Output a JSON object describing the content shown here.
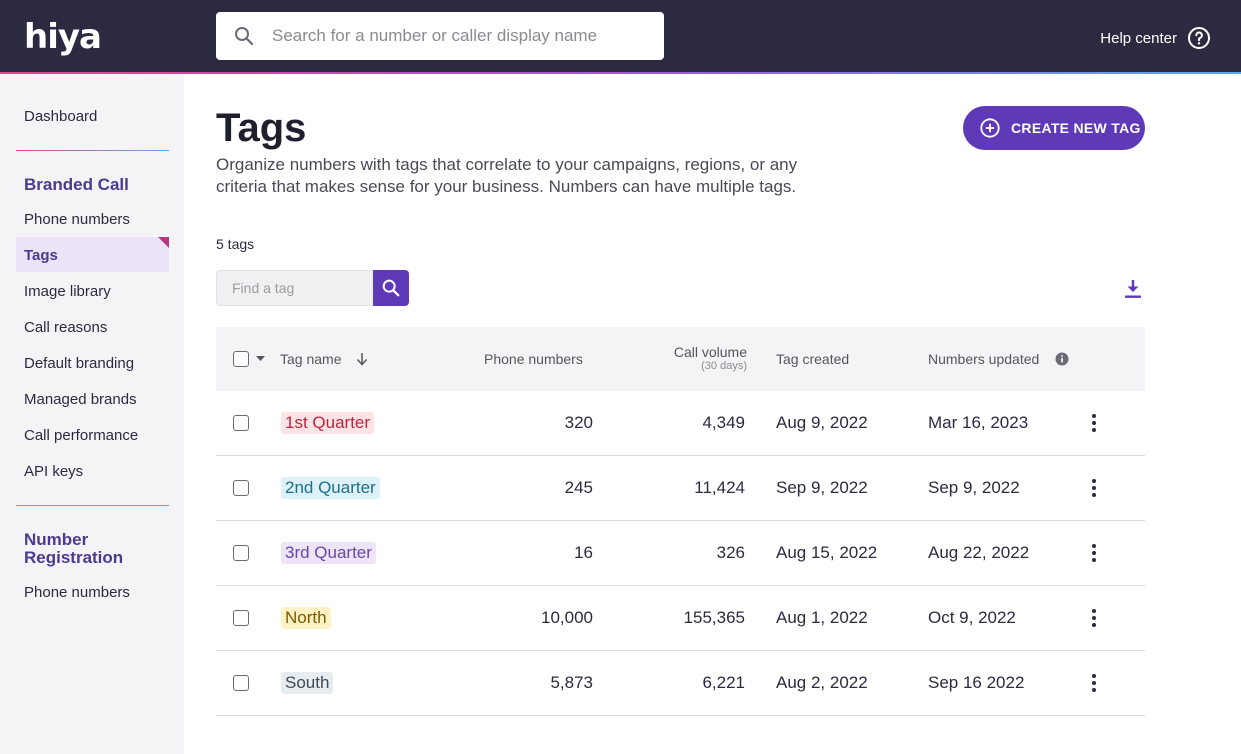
{
  "header": {
    "logo_text": "hiya",
    "search_placeholder": "Search for a number or caller display name",
    "help_label": "Help center"
  },
  "sidebar": {
    "dashboard": "Dashboard",
    "section1_title": "Branded Call",
    "section1_items": [
      "Phone numbers",
      "Tags",
      "Image library",
      "Call reasons",
      "Default branding",
      "Managed brands",
      "Call performance",
      "API keys"
    ],
    "active_item": "Tags",
    "section2_title_line1": "Number",
    "section2_title_line2": "Registration",
    "section2_items": [
      "Phone numbers"
    ]
  },
  "page": {
    "title": "Tags",
    "description_line1": "Organize numbers with tags that correlate to your campaigns, regions, or any",
    "description_line2": "criteria that makes sense for your business. Numbers can have multiple tags.",
    "create_button": "CREATE NEW TAG",
    "tag_count": "5 tags",
    "find_placeholder": "Find a tag"
  },
  "table": {
    "columns": {
      "tag_name": "Tag name",
      "phone_numbers": "Phone numbers",
      "call_volume": "Call volume",
      "call_volume_sub": "(30 days)",
      "tag_created": "Tag created",
      "numbers_updated": "Numbers updated"
    },
    "rows": [
      {
        "tag": "1st Quarter",
        "phone_numbers": "320",
        "call_volume": "4,349",
        "created": "Aug 9, 2022",
        "updated": "Mar 16, 2023"
      },
      {
        "tag": "2nd Quarter",
        "phone_numbers": "245",
        "call_volume": "11,424",
        "created": "Sep 9, 2022",
        "updated": "Sep 9, 2022"
      },
      {
        "tag": "3rd Quarter",
        "phone_numbers": "16",
        "call_volume": "326",
        "created": "Aug 15, 2022",
        "updated": "Aug 22, 2022"
      },
      {
        "tag": "North",
        "phone_numbers": "10,000",
        "call_volume": "155,365",
        "created": "Aug 1, 2022",
        "updated": "Oct 9, 2022"
      },
      {
        "tag": "South",
        "phone_numbers": "5,873",
        "call_volume": "6,221",
        "created": "Aug 2, 2022",
        "updated": "Sep 16 2022"
      }
    ]
  },
  "colors": {
    "brand_purple": "#5f3ab8",
    "header_bg": "#2b2a40",
    "tag_q1_bg": "#fde3e6",
    "tag_q1_fg": "#b8283f",
    "tag_q2_bg": "#dcf1f8",
    "tag_q2_fg": "#1f6f8f",
    "tag_q3_bg": "#eee4f8",
    "tag_q3_fg": "#6a46a8",
    "tag_north_bg": "#fdf2c4",
    "tag_north_fg": "#7a5a00",
    "tag_south_bg": "#e6ecef",
    "tag_south_fg": "#3b4a55"
  }
}
